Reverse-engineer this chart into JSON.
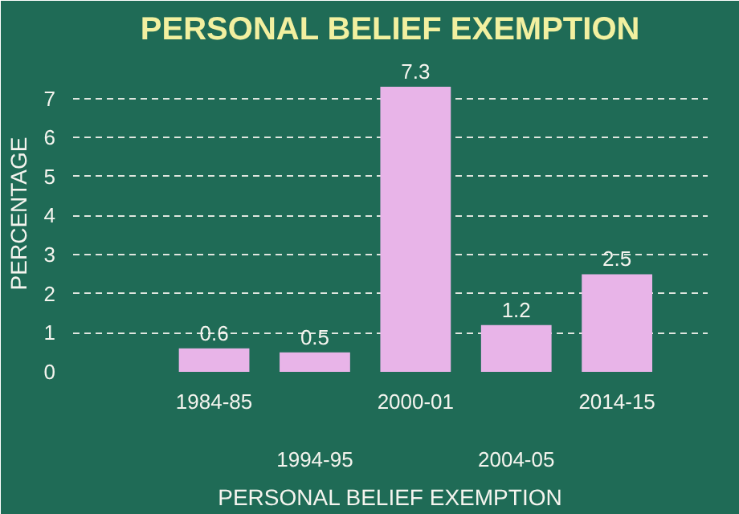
{
  "chart_data": {
    "type": "bar",
    "title": "PERSONAL BELIEF EXEMPTION",
    "xlabel": "PERSONAL BELIEF EXEMPTION",
    "ylabel": "PERCENTAGE",
    "categories": [
      "1984-85",
      "1994-95",
      "2000-01",
      "2004-05",
      "2014-15"
    ],
    "values": [
      0.6,
      0.5,
      7.3,
      1.2,
      2.5
    ],
    "color": "#e8b4e8",
    "ylim": [
      0,
      8.1
    ],
    "yticks": [
      0,
      1,
      2,
      3,
      4,
      5,
      6,
      7
    ],
    "grid": "y",
    "data_labels": true
  }
}
